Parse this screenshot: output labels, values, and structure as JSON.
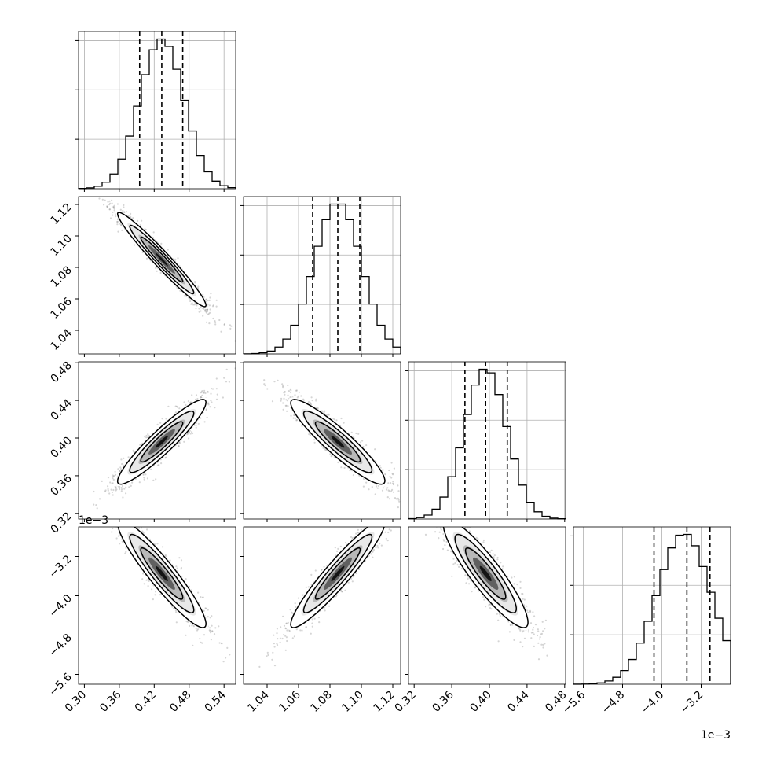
{
  "chart_data": {
    "type": "corner",
    "params": [
      {
        "range": [
          0.29,
          0.56
        ],
        "ticks": [
          0.3,
          0.36,
          0.42,
          0.48,
          0.54
        ],
        "tick_labels": [
          "0.30",
          "0.36",
          "0.42",
          "0.48",
          "0.54"
        ],
        "quantiles": [
          0.395,
          0.433,
          0.469
        ],
        "mean": 0.433,
        "sd": 0.038,
        "offset_label": ""
      },
      {
        "range": [
          1.025,
          1.125
        ],
        "ticks": [
          1.04,
          1.06,
          1.08,
          1.1,
          1.12
        ],
        "tick_labels": [
          "1.04",
          "1.06",
          "1.08",
          "1.10",
          "1.12"
        ],
        "quantiles": [
          1.069,
          1.085,
          1.099
        ],
        "mean": 1.085,
        "sd": 0.015,
        "offset_label": ""
      },
      {
        "range": [
          0.314,
          0.481
        ],
        "ticks": [
          0.32,
          0.36,
          0.4,
          0.44,
          0.48
        ],
        "tick_labels": [
          "0.32",
          "0.36",
          "0.40",
          "0.44",
          "0.48"
        ],
        "quantiles": [
          0.374,
          0.396,
          0.419
        ],
        "mean": 0.396,
        "sd": 0.0225,
        "offset_label": ""
      },
      {
        "range": [
          -5.8,
          -2.6
        ],
        "ticks": [
          -5.6,
          -4.8,
          -4.0,
          -3.2
        ],
        "tick_labels": [
          "−5.6",
          "−4.8",
          "−4.0",
          "−3.2"
        ],
        "quantiles": [
          -4.16,
          -3.49,
          -3.02
        ],
        "mean": -3.55,
        "sd": 0.55,
        "offset_label": "1e−3"
      }
    ],
    "correlations": [
      [
        1,
        -0.97,
        0.93,
        -0.93
      ],
      [
        -0.97,
        1,
        -0.92,
        0.94
      ],
      [
        0.93,
        -0.92,
        1,
        -0.9
      ],
      [
        -0.93,
        0.94,
        -0.9,
        1
      ]
    ],
    "histogram_bins": 20,
    "grid": true
  }
}
